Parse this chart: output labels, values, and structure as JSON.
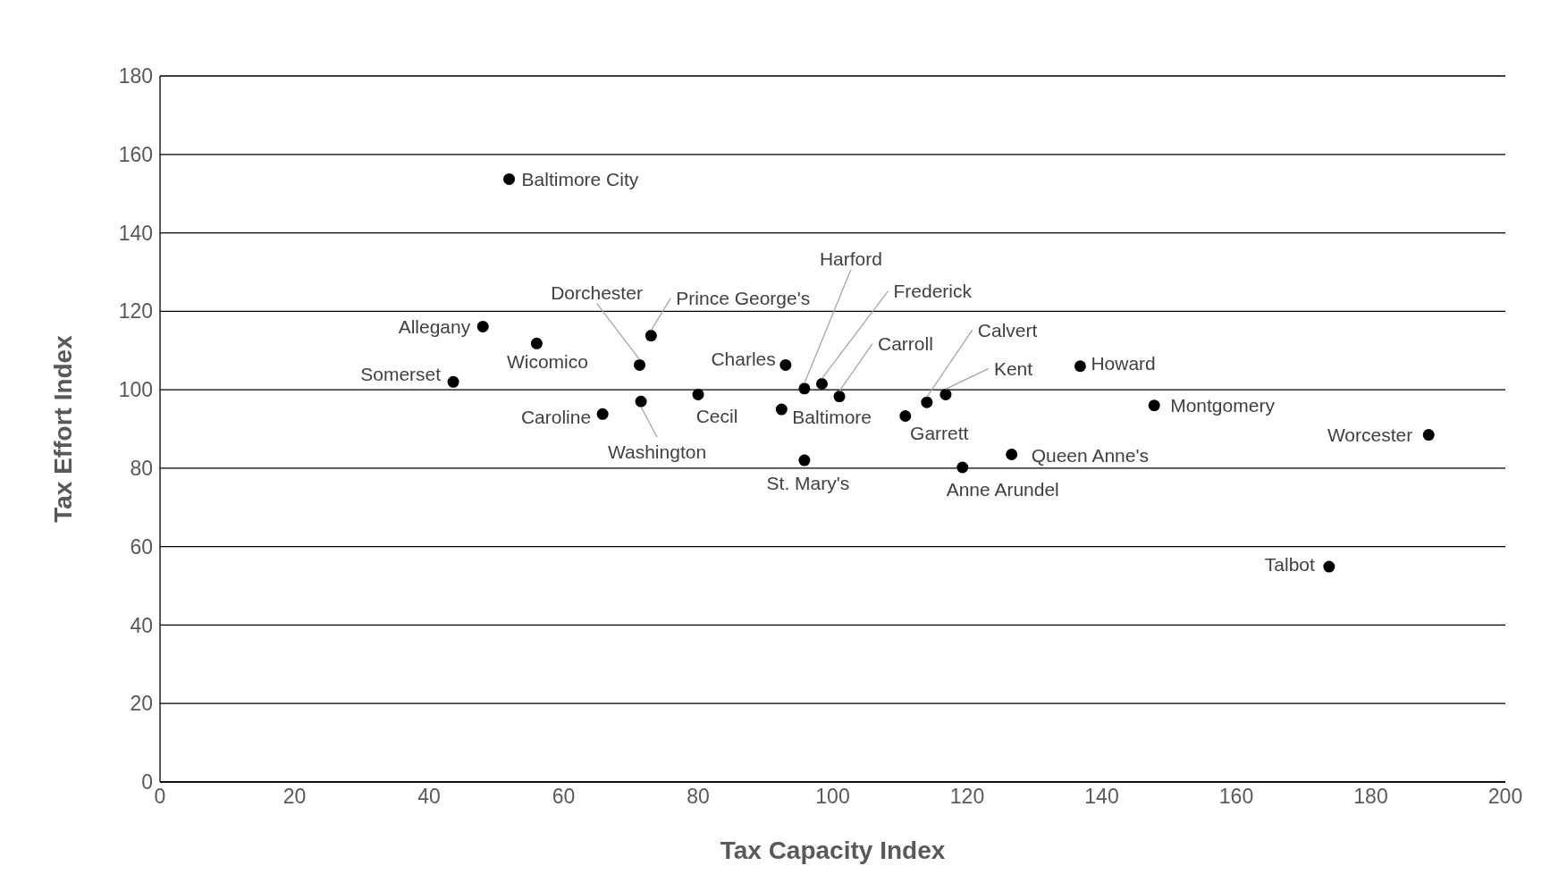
{
  "chart_data": {
    "type": "scatter",
    "xlabel": "Tax Capacity Index",
    "ylabel": "Tax Effort Index",
    "xlim": [
      0,
      200
    ],
    "xticks": [
      0,
      20,
      40,
      60,
      80,
      100,
      120,
      140,
      160,
      180,
      200
    ],
    "ylim": [
      0,
      180
    ],
    "yticks": [
      0,
      20,
      40,
      60,
      80,
      100,
      120,
      140,
      160,
      180
    ],
    "grid": "y",
    "legend": false,
    "marker": "circle",
    "series": [
      {
        "color": "#000000",
        "x": [
          51.9,
          48.0,
          56.0,
          43.6,
          65.8,
          71.5,
          71.3,
          73.0,
          80.0,
          93.0,
          92.4,
          95.8,
          98.4,
          101.0,
          95.8,
          110.8,
          114.0,
          116.8,
          119.3,
          126.6,
          136.8,
          147.8,
          188.6,
          173.8
        ],
        "values": [
          153.7,
          116.1,
          111.8,
          102.0,
          93.8,
          97.0,
          106.3,
          113.8,
          98.8,
          106.3,
          95.0,
          100.3,
          101.5,
          98.3,
          82.0,
          93.3,
          96.8,
          98.8,
          80.2,
          83.5,
          106.0,
          96.0,
          88.5,
          54.9
        ]
      }
    ],
    "annotations": [
      {
        "text": "Baltimore City",
        "x": 51.9,
        "y": 153.7
      },
      {
        "text": "Allegany",
        "x": 48.0,
        "y": 116.1
      },
      {
        "text": "Wicomico",
        "x": 56.0,
        "y": 111.8
      },
      {
        "text": "Somerset",
        "x": 43.6,
        "y": 102.0
      },
      {
        "text": "Caroline",
        "x": 65.8,
        "y": 93.8
      },
      {
        "text": "Washington",
        "x": 71.5,
        "y": 97.0
      },
      {
        "text": "Dorchester",
        "x": 71.3,
        "y": 106.3
      },
      {
        "text": "Prince George's",
        "x": 73.0,
        "y": 113.8
      },
      {
        "text": "Cecil",
        "x": 80.0,
        "y": 98.8
      },
      {
        "text": "Charles",
        "x": 93.0,
        "y": 106.3
      },
      {
        "text": "Baltimore",
        "x": 92.4,
        "y": 95.0
      },
      {
        "text": "Harford",
        "x": 95.8,
        "y": 100.3
      },
      {
        "text": "Frederick",
        "x": 98.4,
        "y": 101.5
      },
      {
        "text": "Carroll",
        "x": 101.0,
        "y": 98.3
      },
      {
        "text": "St. Mary's",
        "x": 95.8,
        "y": 82.0
      },
      {
        "text": "Garrett",
        "x": 110.8,
        "y": 93.3
      },
      {
        "text": "Calvert",
        "x": 114.0,
        "y": 96.8
      },
      {
        "text": "Kent",
        "x": 116.8,
        "y": 98.8
      },
      {
        "text": "Anne Arundel",
        "x": 119.3,
        "y": 80.2
      },
      {
        "text": "Queen Anne's",
        "x": 126.6,
        "y": 83.5
      },
      {
        "text": "Howard",
        "x": 136.8,
        "y": 106.0
      },
      {
        "text": "Montgomery",
        "x": 147.8,
        "y": 96.0
      },
      {
        "text": "Worcester",
        "x": 188.6,
        "y": 88.5
      },
      {
        "text": "Talbot",
        "x": 173.8,
        "y": 54.9
      }
    ]
  }
}
